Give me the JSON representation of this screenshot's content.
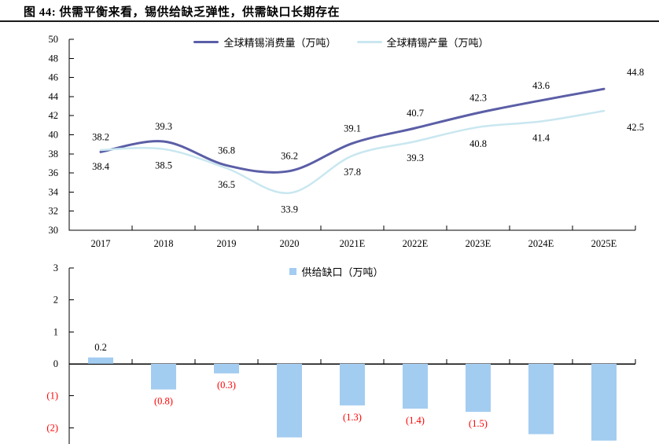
{
  "figure": {
    "title": "图 44:  供需平衡来看，锡供给缺乏弹性，供需缺口长期存在"
  },
  "chart_data": [
    {
      "type": "line",
      "title": "",
      "categories": [
        "2017",
        "2018",
        "2019",
        "2020",
        "2021E",
        "2022E",
        "2023E",
        "2024E",
        "2025E"
      ],
      "series": [
        {
          "name": "全球精锡消费量（万吨）",
          "values": [
            38.2,
            39.3,
            36.8,
            36.2,
            39.1,
            40.7,
            42.3,
            43.6,
            44.8
          ],
          "color": "#5B5EA6"
        },
        {
          "name": "全球精锡产量（万吨）",
          "values": [
            38.4,
            38.5,
            36.5,
            33.9,
            37.8,
            39.3,
            40.8,
            41.4,
            42.5
          ],
          "color": "#C9E7F0"
        }
      ],
      "ylim": [
        30,
        50
      ],
      "yticks": [
        {
          "v": 50,
          "label": "50"
        },
        {
          "v": 48,
          "label": "48"
        },
        {
          "v": 46,
          "label": "46"
        },
        {
          "v": 44,
          "label": "44"
        },
        {
          "v": 42,
          "label": "42"
        },
        {
          "v": 40,
          "label": "40"
        },
        {
          "v": 38,
          "label": "38"
        },
        {
          "v": 36,
          "label": "36"
        },
        {
          "v": 34,
          "label": "34"
        },
        {
          "v": 32,
          "label": "32"
        },
        {
          "v": 30,
          "label": "30"
        }
      ],
      "grid": false,
      "smooth": true,
      "legend_position": "top-center",
      "label_color": "#000000"
    },
    {
      "type": "bar",
      "title": "",
      "categories": [
        "2017",
        "2018",
        "2019",
        "2020",
        "2021E",
        "2022E",
        "2023E",
        "2024E",
        "2025E"
      ],
      "series": [
        {
          "name": "供给缺口（万吨）",
          "values": [
            0.2,
            -0.8,
            -0.3,
            -2.3,
            -1.3,
            -1.4,
            -1.5,
            -2.2,
            -2.4
          ],
          "color": "#A3CCF1"
        }
      ],
      "bar_labels": [
        "0.2",
        "(0.8)",
        "(0.3)",
        "",
        "(1.3)",
        "(1.4)",
        "(1.5)",
        "",
        ""
      ],
      "yticks": [
        {
          "v": 3,
          "label": "3"
        },
        {
          "v": 2,
          "label": "2"
        },
        {
          "v": 1,
          "label": "1"
        },
        {
          "v": 0,
          "label": "0"
        },
        {
          "v": -1,
          "label": "(1)"
        },
        {
          "v": -2,
          "label": "(2)"
        }
      ],
      "ylim": [
        -2.5,
        3
      ],
      "grid": false,
      "legend_position": "top-center",
      "positive_label_color": "#000000",
      "negative_label_color": "#FF0000"
    }
  ],
  "colors": {
    "axis": "#000000",
    "negative": "#FF0000",
    "text": "#000000"
  }
}
